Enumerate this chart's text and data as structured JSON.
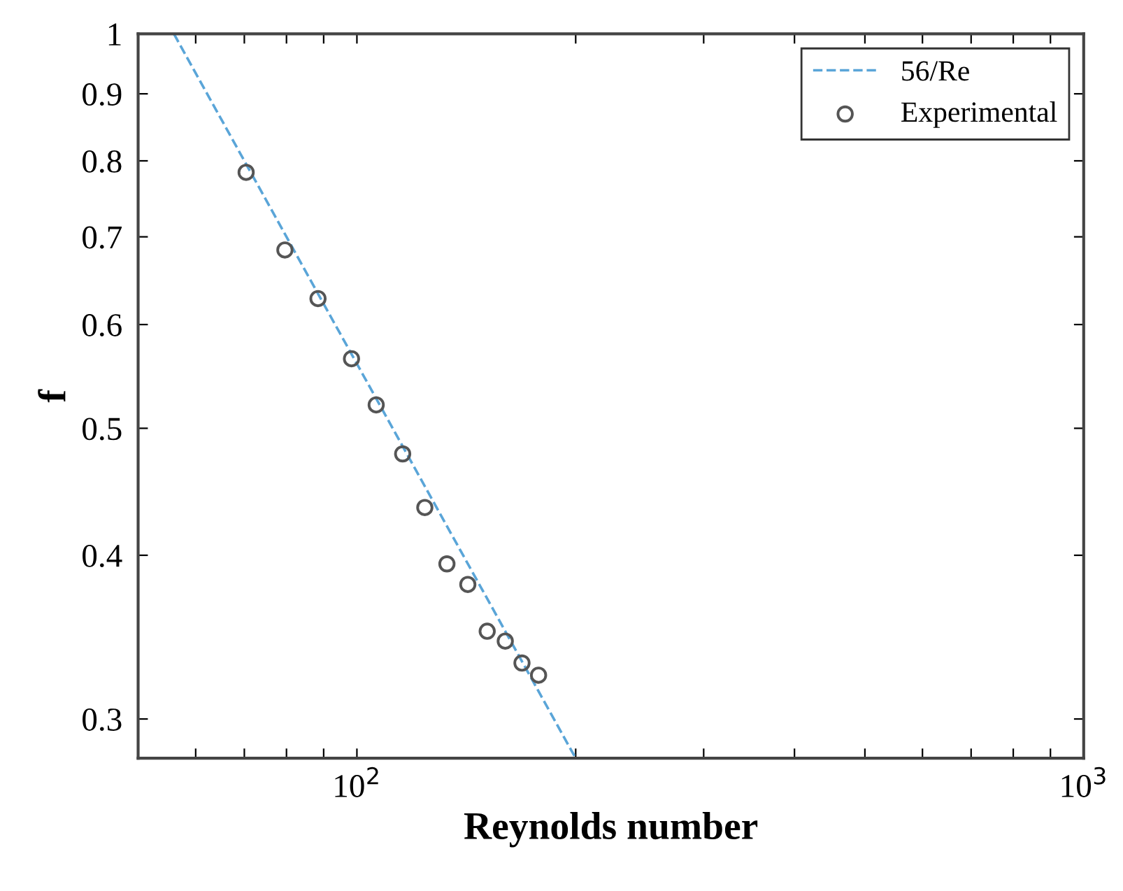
{
  "chart_data": {
    "type": "scatter",
    "xlabel": "Reynolds number",
    "ylabel": "f",
    "log": "xy",
    "xlim": [
      50,
      1000
    ],
    "ylim": [
      0.28,
      1
    ],
    "xticks": [
      {
        "value": 60,
        "label": null
      },
      {
        "value": 70,
        "label": null
      },
      {
        "value": 80,
        "label": null
      },
      {
        "value": 90,
        "label": null
      },
      {
        "value": 100,
        "label": "10$^{2}$"
      },
      {
        "value": 200,
        "label": null
      },
      {
        "value": 300,
        "label": null
      },
      {
        "value": 400,
        "label": null
      },
      {
        "value": 500,
        "label": null
      },
      {
        "value": 600,
        "label": null
      },
      {
        "value": 700,
        "label": null
      },
      {
        "value": 800,
        "label": null
      },
      {
        "value": 900,
        "label": null
      },
      {
        "value": 1000,
        "label": "10$^{3}$"
      }
    ],
    "yticks": [
      0.3,
      0.4,
      0.5,
      0.6,
      0.7,
      0.8,
      0.9,
      1
    ],
    "grid": false,
    "legend": "top right",
    "series": [
      {
        "name": "56/Re",
        "type": "line",
        "line_style": "dashed",
        "marker": "none",
        "color": "#5aa5d8",
        "x": [
          56,
          200
        ],
        "values": [
          1,
          0.28
        ]
      },
      {
        "name": "Experimental",
        "marker": "circle",
        "color": "#555555",
        "x": [
          70.4,
          79.6,
          88.4,
          98.3,
          106.3,
          115.6,
          124.0,
          133.0,
          142.1,
          151.1,
          160.0,
          168.7,
          177.8
        ],
        "values": [
          0.784,
          0.684,
          0.628,
          0.565,
          0.521,
          0.478,
          0.435,
          0.394,
          0.38,
          0.35,
          0.344,
          0.331,
          0.324
        ]
      }
    ]
  }
}
